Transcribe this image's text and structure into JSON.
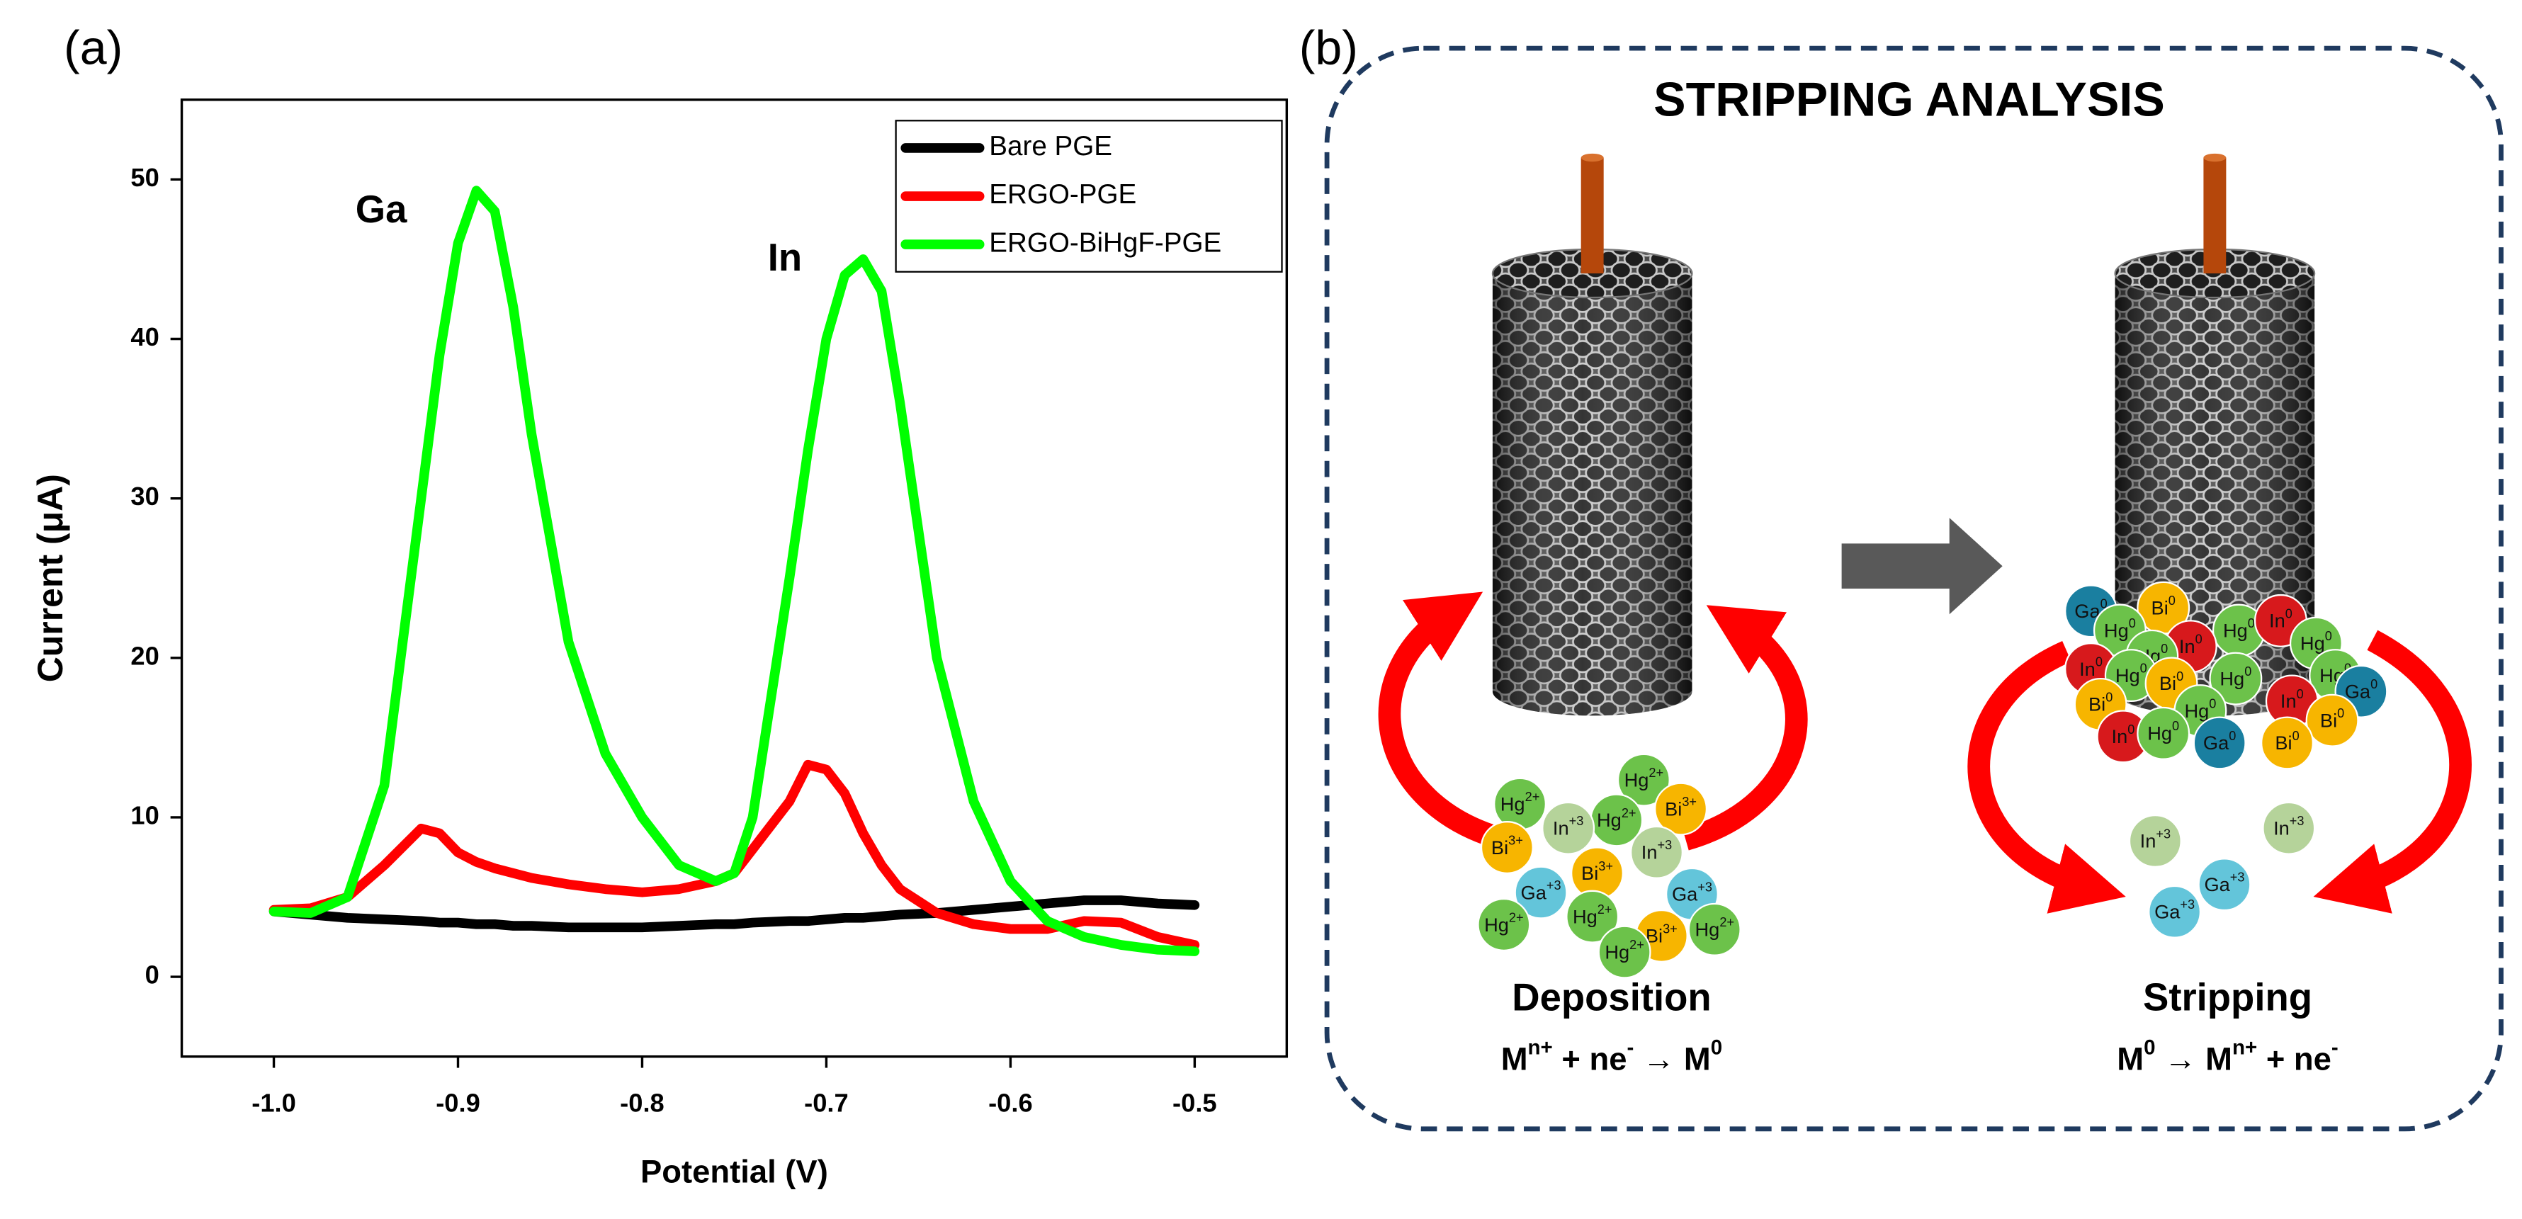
{
  "chart_data": {
    "type": "line",
    "label": "(a)",
    "xlabel": "Potential (V)",
    "ylabel": "Current (μA)",
    "x": [
      -1.0,
      -0.98,
      -0.96,
      -0.94,
      -0.92,
      -0.91,
      -0.9,
      -0.89,
      -0.88,
      -0.87,
      -0.86,
      -0.84,
      -0.82,
      -0.8,
      -0.78,
      -0.76,
      -0.75,
      -0.74,
      -0.72,
      -0.71,
      -0.7,
      -0.69,
      -0.68,
      -0.67,
      -0.66,
      -0.64,
      -0.62,
      -0.6,
      -0.58,
      -0.56,
      -0.54,
      -0.52,
      -0.5
    ],
    "series": [
      {
        "name": "Bare PGE",
        "color": "#000000",
        "values": [
          4.1,
          3.9,
          3.7,
          3.6,
          3.5,
          3.4,
          3.4,
          3.3,
          3.3,
          3.2,
          3.2,
          3.1,
          3.1,
          3.1,
          3.2,
          3.3,
          3.3,
          3.4,
          3.5,
          3.5,
          3.6,
          3.7,
          3.7,
          3.8,
          3.9,
          4.0,
          4.2,
          4.4,
          4.6,
          4.8,
          4.8,
          4.6,
          4.5
        ]
      },
      {
        "name": "ERGO-PGE",
        "color": "#ff0000",
        "values": [
          4.2,
          4.3,
          5,
          7,
          9.3,
          9.0,
          7.8,
          7.2,
          6.8,
          6.5,
          6.2,
          5.8,
          5.5,
          5.3,
          5.5,
          6,
          6.5,
          8,
          11,
          13.3,
          13,
          11.5,
          9,
          7,
          5.5,
          4,
          3.3,
          3,
          3,
          3.5,
          3.4,
          2.5,
          2.0
        ]
      },
      {
        "name": "ERGO-BiHgF-PGE",
        "color": "#00ff00",
        "values": [
          4.1,
          4.0,
          5,
          12,
          30,
          39,
          46,
          49.3,
          48,
          42,
          34,
          21,
          14,
          10,
          7,
          6,
          6.5,
          10,
          25,
          33,
          40,
          44,
          45,
          43,
          36,
          20,
          11,
          6,
          3.5,
          2.5,
          2.0,
          1.7,
          1.6
        ]
      }
    ],
    "xlim": [
      -1.05,
      -0.45
    ],
    "xticks": [
      {
        "value": -1.0,
        "label": "-1.0"
      },
      -0.9,
      -0.8,
      -0.7,
      -0.6,
      -0.5
    ],
    "ylim": [
      -5,
      55
    ],
    "yticks": [
      0,
      10,
      20,
      30,
      40,
      50
    ],
    "legend": "upper right",
    "annotations": [
      "Ga",
      "In"
    ]
  },
  "panel_b": {
    "label": "(b)",
    "title": "STRIPPING ANALYSIS",
    "deposition": {
      "label": "Deposition",
      "equation": [
        {
          "text": "M"
        },
        {
          "text": "n+",
          "sup": true
        },
        {
          "text": " + ne"
        },
        {
          "text": "-",
          "sup": true
        },
        {
          "text": " → M"
        },
        {
          "text": "0",
          "sup": true
        }
      ]
    },
    "stripping": {
      "label": "Stripping",
      "equation": [
        {
          "text": "M"
        },
        {
          "text": "0",
          "sup": true
        },
        {
          "text": " → M"
        },
        {
          "text": "n+",
          "sup": true
        },
        {
          "text": " + ne"
        },
        {
          "text": "-",
          "sup": true
        }
      ]
    },
    "deposition_ions": [
      {
        "symbol": "Hg",
        "charge": "2+",
        "color": "#6cc24a"
      },
      {
        "symbol": "Hg",
        "charge": "2+",
        "color": "#6cc24a"
      },
      {
        "symbol": "Hg",
        "charge": "2+",
        "color": "#6cc24a"
      },
      {
        "symbol": "Bi",
        "charge": "3+",
        "color": "#f7b500"
      },
      {
        "symbol": "In",
        "charge": "+3",
        "color": "#b5d39a"
      },
      {
        "symbol": "In",
        "charge": "+3",
        "color": "#b5d39a"
      },
      {
        "symbol": "Bi",
        "charge": "3+",
        "color": "#f7b500"
      },
      {
        "symbol": "Ga",
        "charge": "+3",
        "color": "#63c5da"
      },
      {
        "symbol": "Bi",
        "charge": "3+",
        "color": "#f7b500"
      },
      {
        "symbol": "Ga",
        "charge": "+3",
        "color": "#63c5da"
      },
      {
        "symbol": "Hg",
        "charge": "2+",
        "color": "#6cc24a"
      },
      {
        "symbol": "Hg",
        "charge": "2+",
        "color": "#6cc24a"
      },
      {
        "symbol": "Bi",
        "charge": "3+",
        "color": "#f7b500"
      },
      {
        "symbol": "Hg",
        "charge": "2+",
        "color": "#6cc24a"
      },
      {
        "symbol": "Hg",
        "charge": "2+",
        "color": "#6cc24a"
      }
    ],
    "stripping_ions": [
      {
        "symbol": "Ga",
        "charge": "0",
        "color": "#1a7fa0"
      },
      {
        "symbol": "Bi",
        "charge": "0",
        "color": "#f7b500"
      },
      {
        "symbol": "Hg",
        "charge": "0",
        "color": "#6cc24a"
      },
      {
        "symbol": "Hg",
        "charge": "0",
        "color": "#6cc24a"
      },
      {
        "symbol": "In",
        "charge": "0",
        "color": "#d7191c"
      },
      {
        "symbol": "Hg",
        "charge": "0",
        "color": "#6cc24a"
      },
      {
        "symbol": "In",
        "charge": "0",
        "color": "#d7191c"
      },
      {
        "symbol": "Hg",
        "charge": "0",
        "color": "#6cc24a"
      },
      {
        "symbol": "In",
        "charge": "0",
        "color": "#d7191c"
      },
      {
        "symbol": "Hg",
        "charge": "0",
        "color": "#6cc24a"
      },
      {
        "symbol": "Bi",
        "charge": "0",
        "color": "#f7b500"
      },
      {
        "symbol": "Hg",
        "charge": "0",
        "color": "#6cc24a"
      },
      {
        "symbol": "Hg",
        "charge": "0",
        "color": "#6cc24a"
      },
      {
        "symbol": "Ga",
        "charge": "0",
        "color": "#1a7fa0"
      },
      {
        "symbol": "Bi",
        "charge": "0",
        "color": "#f7b500"
      },
      {
        "symbol": "Hg",
        "charge": "0",
        "color": "#6cc24a"
      },
      {
        "symbol": "In",
        "charge": "0",
        "color": "#d7191c"
      },
      {
        "symbol": "Bi",
        "charge": "0",
        "color": "#f7b500"
      },
      {
        "symbol": "In",
        "charge": "0",
        "color": "#d7191c"
      },
      {
        "symbol": "Hg",
        "charge": "0",
        "color": "#6cc24a"
      },
      {
        "symbol": "Ga",
        "charge": "0",
        "color": "#1a7fa0"
      },
      {
        "symbol": "Bi",
        "charge": "0",
        "color": "#f7b500"
      },
      {
        "symbol": "In",
        "charge": "+3",
        "color": "#b5d39a"
      },
      {
        "symbol": "In",
        "charge": "+3",
        "color": "#b5d39a"
      },
      {
        "symbol": "Ga",
        "charge": "+3",
        "color": "#63c5da"
      },
      {
        "symbol": "Ga",
        "charge": "+3",
        "color": "#63c5da"
      }
    ]
  }
}
